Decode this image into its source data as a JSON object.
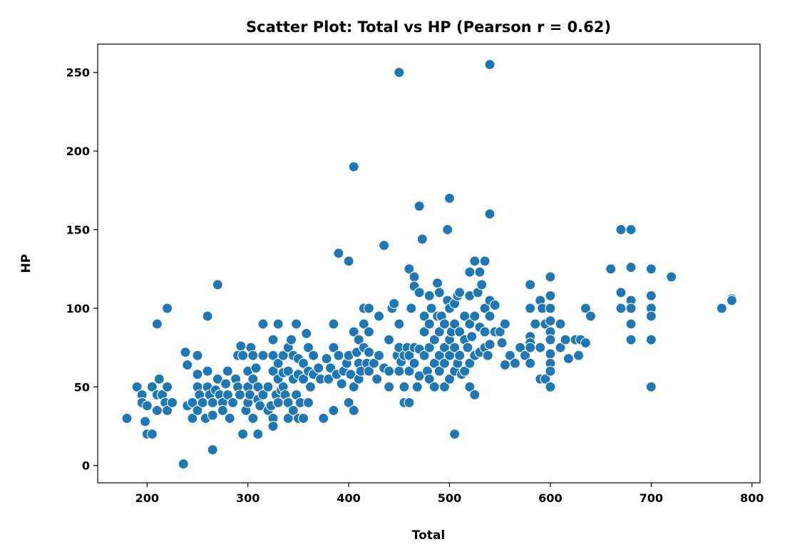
{
  "chart_data": {
    "type": "scatter",
    "title": "Scatter Plot: Total vs HP (Pearson r = 0.62)",
    "xlabel": "Total",
    "ylabel": "HP",
    "xlim": [
      151,
      808
    ],
    "ylim": [
      -11,
      268
    ],
    "xticks": [
      200,
      300,
      400,
      500,
      600,
      700,
      800
    ],
    "yticks": [
      0,
      50,
      100,
      150,
      200,
      250
    ],
    "grid": false,
    "legend": "none",
    "color": "#1f77b4",
    "points": [
      [
        180,
        30
      ],
      [
        190,
        50
      ],
      [
        195,
        45
      ],
      [
        195,
        40
      ],
      [
        198,
        28
      ],
      [
        200,
        38
      ],
      [
        200,
        20
      ],
      [
        205,
        20
      ],
      [
        205,
        50
      ],
      [
        210,
        90
      ],
      [
        210,
        45
      ],
      [
        210,
        35
      ],
      [
        212,
        55
      ],
      [
        215,
        45
      ],
      [
        218,
        40
      ],
      [
        220,
        50
      ],
      [
        220,
        35
      ],
      [
        220,
        100
      ],
      [
        225,
        40
      ],
      [
        236,
        1
      ],
      [
        238,
        72
      ],
      [
        240,
        64
      ],
      [
        240,
        38
      ],
      [
        245,
        40
      ],
      [
        245,
        30
      ],
      [
        250,
        70
      ],
      [
        250,
        58
      ],
      [
        250,
        50
      ],
      [
        250,
        35
      ],
      [
        252,
        45
      ],
      [
        255,
        40
      ],
      [
        258,
        30
      ],
      [
        260,
        95
      ],
      [
        260,
        60
      ],
      [
        260,
        50
      ],
      [
        262,
        45
      ],
      [
        265,
        10
      ],
      [
        265,
        40
      ],
      [
        265,
        32
      ],
      [
        268,
        48
      ],
      [
        270,
        115
      ],
      [
        270,
        55
      ],
      [
        272,
        45
      ],
      [
        275,
        40
      ],
      [
        275,
        35
      ],
      [
        278,
        52
      ],
      [
        280,
        60
      ],
      [
        280,
        45
      ],
      [
        282,
        30
      ],
      [
        285,
        40
      ],
      [
        288,
        55
      ],
      [
        290,
        70
      ],
      [
        290,
        50
      ],
      [
        292,
        45
      ],
      [
        293,
        76
      ],
      [
        295,
        70
      ],
      [
        295,
        20
      ],
      [
        298,
        35
      ],
      [
        300,
        60
      ],
      [
        300,
        50
      ],
      [
        300,
        40
      ],
      [
        302,
        45
      ],
      [
        303,
        75
      ],
      [
        305,
        70
      ],
      [
        305,
        55
      ],
      [
        305,
        30
      ],
      [
        308,
        62
      ],
      [
        310,
        50
      ],
      [
        310,
        42
      ],
      [
        310,
        20
      ],
      [
        312,
        38
      ],
      [
        315,
        90
      ],
      [
        315,
        70
      ],
      [
        315,
        45
      ],
      [
        320,
        50
      ],
      [
        320,
        35
      ],
      [
        323,
        38
      ],
      [
        325,
        80
      ],
      [
        325,
        70
      ],
      [
        325,
        60
      ],
      [
        325,
        30
      ],
      [
        325,
        25
      ],
      [
        328,
        45
      ],
      [
        330,
        90
      ],
      [
        330,
        65
      ],
      [
        330,
        55
      ],
      [
        330,
        40
      ],
      [
        333,
        48
      ],
      [
        335,
        70
      ],
      [
        335,
        59
      ],
      [
        335,
        50
      ],
      [
        337,
        45
      ],
      [
        340,
        75
      ],
      [
        340,
        60
      ],
      [
        340,
        40
      ],
      [
        340,
        30
      ],
      [
        343,
        80
      ],
      [
        345,
        70
      ],
      [
        345,
        55
      ],
      [
        345,
        35
      ],
      [
        348,
        90
      ],
      [
        348,
        45
      ],
      [
        350,
        68
      ],
      [
        350,
        58
      ],
      [
        350,
        30
      ],
      [
        352,
        40
      ],
      [
        355,
        65
      ],
      [
        355,
        55
      ],
      [
        355,
        30
      ],
      [
        358,
        84
      ],
      [
        360,
        75
      ],
      [
        360,
        60
      ],
      [
        360,
        40
      ],
      [
        362,
        50
      ],
      [
        365,
        70
      ],
      [
        365,
        58
      ],
      [
        370,
        62
      ],
      [
        372,
        55
      ],
      [
        375,
        30
      ],
      [
        378,
        68
      ],
      [
        380,
        55
      ],
      [
        382,
        62
      ],
      [
        385,
        90
      ],
      [
        385,
        75
      ],
      [
        385,
        35
      ],
      [
        388,
        58
      ],
      [
        390,
        135
      ],
      [
        390,
        70
      ],
      [
        393,
        52
      ],
      [
        395,
        60
      ],
      [
        398,
        65
      ],
      [
        400,
        130
      ],
      [
        400,
        70
      ],
      [
        400,
        40
      ],
      [
        402,
        58
      ],
      [
        405,
        190
      ],
      [
        405,
        85
      ],
      [
        405,
        50
      ],
      [
        405,
        35
      ],
      [
        408,
        72
      ],
      [
        410,
        80
      ],
      [
        410,
        65
      ],
      [
        410,
        55
      ],
      [
        412,
        60
      ],
      [
        415,
        100
      ],
      [
        415,
        90
      ],
      [
        415,
        75
      ],
      [
        418,
        65
      ],
      [
        420,
        100
      ],
      [
        420,
        85
      ],
      [
        420,
        72
      ],
      [
        420,
        60
      ],
      [
        425,
        65
      ],
      [
        428,
        55
      ],
      [
        430,
        95
      ],
      [
        430,
        70
      ],
      [
        435,
        140
      ],
      [
        435,
        62
      ],
      [
        440,
        80
      ],
      [
        440,
        60
      ],
      [
        440,
        50
      ],
      [
        443,
        100
      ],
      [
        445,
        103
      ],
      [
        448,
        70
      ],
      [
        450,
        250
      ],
      [
        450,
        90
      ],
      [
        450,
        75
      ],
      [
        450,
        60
      ],
      [
        452,
        66
      ],
      [
        455,
        70
      ],
      [
        455,
        50
      ],
      [
        455,
        40
      ],
      [
        458,
        75
      ],
      [
        460,
        125
      ],
      [
        460,
        70
      ],
      [
        460,
        60
      ],
      [
        460,
        40
      ],
      [
        462,
        100
      ],
      [
        465,
        120
      ],
      [
        465,
        114
      ],
      [
        465,
        75
      ],
      [
        465,
        65
      ],
      [
        468,
        50
      ],
      [
        470,
        165
      ],
      [
        470,
        110
      ],
      [
        470,
        74
      ],
      [
        470,
        57
      ],
      [
        473,
        144
      ],
      [
        475,
        95
      ],
      [
        475,
        85
      ],
      [
        475,
        70
      ],
      [
        478,
        60
      ],
      [
        480,
        108
      ],
      [
        480,
        90
      ],
      [
        480,
        75
      ],
      [
        480,
        55
      ],
      [
        482,
        100
      ],
      [
        485,
        80
      ],
      [
        485,
        65
      ],
      [
        485,
        50
      ],
      [
        488,
        116
      ],
      [
        488,
        95
      ],
      [
        490,
        110
      ],
      [
        490,
        85
      ],
      [
        490,
        70
      ],
      [
        490,
        60
      ],
      [
        492,
        95
      ],
      [
        495,
        90
      ],
      [
        495,
        75
      ],
      [
        495,
        65
      ],
      [
        495,
        50
      ],
      [
        498,
        150
      ],
      [
        498,
        105
      ],
      [
        500,
        170
      ],
      [
        500,
        100
      ],
      [
        500,
        80
      ],
      [
        500,
        70
      ],
      [
        500,
        55
      ],
      [
        502,
        85
      ],
      [
        505,
        20
      ],
      [
        505,
        103
      ],
      [
        505,
        90
      ],
      [
        505,
        75
      ],
      [
        505,
        60
      ],
      [
        508,
        108
      ],
      [
        508,
        65
      ],
      [
        510,
        110
      ],
      [
        510,
        85
      ],
      [
        510,
        70
      ],
      [
        512,
        58
      ],
      [
        515,
        95
      ],
      [
        515,
        80
      ],
      [
        515,
        60
      ],
      [
        518,
        75
      ],
      [
        520,
        123
      ],
      [
        520,
        108
      ],
      [
        520,
        90
      ],
      [
        520,
        65
      ],
      [
        520,
        50
      ],
      [
        522,
        82
      ],
      [
        525,
        130
      ],
      [
        525,
        95
      ],
      [
        525,
        70
      ],
      [
        525,
        45
      ],
      [
        528,
        110
      ],
      [
        530,
        123
      ],
      [
        530,
        88
      ],
      [
        530,
        72
      ],
      [
        532,
        115
      ],
      [
        535,
        130
      ],
      [
        535,
        100
      ],
      [
        535,
        85
      ],
      [
        535,
        75
      ],
      [
        538,
        70
      ],
      [
        540,
        255
      ],
      [
        540,
        160
      ],
      [
        540,
        105
      ],
      [
        540,
        95
      ],
      [
        540,
        77
      ],
      [
        545,
        102
      ],
      [
        545,
        85
      ],
      [
        550,
        85
      ],
      [
        552,
        78
      ],
      [
        555,
        90
      ],
      [
        555,
        64
      ],
      [
        560,
        70
      ],
      [
        565,
        65
      ],
      [
        570,
        75
      ],
      [
        575,
        70
      ],
      [
        580,
        115
      ],
      [
        580,
        100
      ],
      [
        580,
        82
      ],
      [
        580,
        78
      ],
      [
        580,
        75
      ],
      [
        580,
        65
      ],
      [
        585,
        90
      ],
      [
        590,
        105
      ],
      [
        590,
        75
      ],
      [
        590,
        55
      ],
      [
        592,
        100
      ],
      [
        595,
        90
      ],
      [
        595,
        55
      ],
      [
        600,
        120
      ],
      [
        600,
        108
      ],
      [
        600,
        100
      ],
      [
        600,
        92
      ],
      [
        600,
        85
      ],
      [
        600,
        80
      ],
      [
        600,
        71
      ],
      [
        600,
        65
      ],
      [
        600,
        60
      ],
      [
        600,
        50
      ],
      [
        610,
        90
      ],
      [
        610,
        75
      ],
      [
        615,
        80
      ],
      [
        618,
        68
      ],
      [
        625,
        80
      ],
      [
        628,
        70
      ],
      [
        630,
        80
      ],
      [
        635,
        100
      ],
      [
        635,
        78
      ],
      [
        640,
        95
      ],
      [
        660,
        125
      ],
      [
        670,
        150
      ],
      [
        670,
        110
      ],
      [
        670,
        100
      ],
      [
        680,
        150
      ],
      [
        680,
        126
      ],
      [
        680,
        105
      ],
      [
        680,
        100
      ],
      [
        680,
        90
      ],
      [
        680,
        80
      ],
      [
        700,
        125
      ],
      [
        700,
        108
      ],
      [
        700,
        100
      ],
      [
        700,
        95
      ],
      [
        700,
        80
      ],
      [
        700,
        50
      ],
      [
        720,
        120
      ],
      [
        770,
        100
      ],
      [
        780,
        106
      ],
      [
        780,
        105
      ]
    ]
  }
}
